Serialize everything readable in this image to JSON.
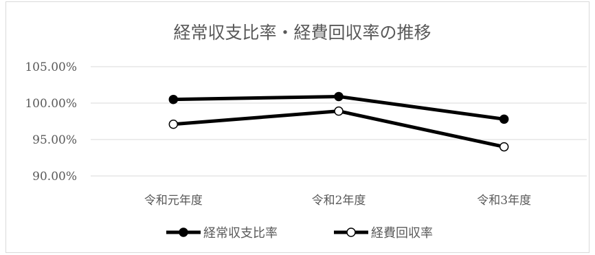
{
  "chart_data": {
    "type": "line",
    "title": "経常収支比率・経費回収率の推移",
    "categories": [
      "令和元年度",
      "令和2年度",
      "令和3年度"
    ],
    "ylim": [
      90,
      105
    ],
    "yticks": [
      {
        "value": 90,
        "label": "90.00%"
      },
      {
        "value": 95,
        "label": "95.00%"
      },
      {
        "value": 100,
        "label": "100.00%"
      },
      {
        "value": 105,
        "label": "105.00%"
      }
    ],
    "grid": true,
    "legend_position": "bottom",
    "series": [
      {
        "name": "経常収支比率",
        "values": [
          100.5,
          100.9,
          97.8
        ],
        "marker": "filled",
        "color": "#000000"
      },
      {
        "name": "経費回収率",
        "values": [
          97.1,
          98.9,
          94.0
        ],
        "marker": "hollow",
        "color": "#000000"
      }
    ]
  }
}
